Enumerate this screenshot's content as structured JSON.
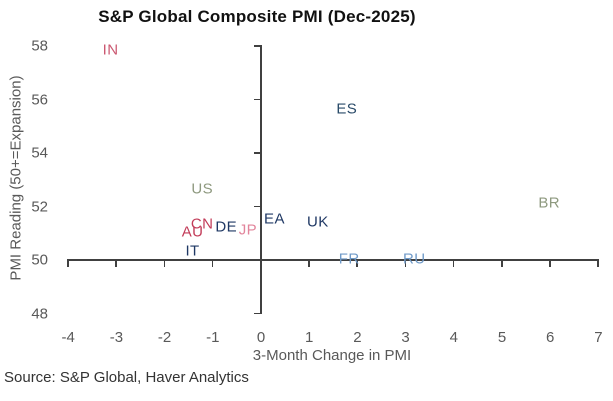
{
  "source": "Source: S&P Global, Haver Analytics",
  "chart_data": {
    "type": "scatter",
    "title": "S&P Global Composite PMI (Dec-2025)",
    "xlabel": "3-Month Change in PMI",
    "ylabel": "PMI Reading (50+=Expansion)",
    "xlim": [
      -4,
      7
    ],
    "ylim": [
      48,
      58
    ],
    "x_ticks": [
      -4,
      -3,
      -2,
      -1,
      0,
      1,
      2,
      3,
      4,
      5,
      6,
      7
    ],
    "y_ticks": [
      48,
      50,
      52,
      54,
      56,
      58
    ],
    "grid": false,
    "legend": "none",
    "annotation_style": "country-code text labels used as data markers",
    "points": [
      {
        "label": "IN",
        "x": -3.1,
        "y": 57.8,
        "color": "#cb5871"
      },
      {
        "label": "ES",
        "x": 1.8,
        "y": 55.6,
        "color": "#2a4b69"
      },
      {
        "label": "US",
        "x": -1.2,
        "y": 52.6,
        "color": "#8e997f"
      },
      {
        "label": "BR",
        "x": 6.0,
        "y": 52.1,
        "color": "#8e997f"
      },
      {
        "label": "EA",
        "x": 0.3,
        "y": 51.5,
        "color": "#1f3864"
      },
      {
        "label": "UK",
        "x": 1.2,
        "y": 51.4,
        "color": "#1f3864"
      },
      {
        "label": "CN",
        "x": -1.2,
        "y": 51.3,
        "color": "#c23b58"
      },
      {
        "label": "DE",
        "x": -0.7,
        "y": 51.2,
        "color": "#1f3864"
      },
      {
        "label": "JP",
        "x": -0.25,
        "y": 51.1,
        "color": "#e2849b"
      },
      {
        "label": "AU",
        "x": -1.4,
        "y": 51.0,
        "color": "#c23b58"
      },
      {
        "label": "IT",
        "x": -1.4,
        "y": 50.3,
        "color": "#1f3864"
      },
      {
        "label": "FR",
        "x": 1.85,
        "y": 50.0,
        "color": "#6f9ac8"
      },
      {
        "label": "RU",
        "x": 3.2,
        "y": 50.0,
        "color": "#6f9ac8"
      }
    ],
    "colors": {
      "axis": "#404040",
      "tick_text": "#595959",
      "title_text": "#111111",
      "red_group": "#c23b58",
      "pink_group": "#e2849b",
      "navy_group": "#1f3864",
      "steel_group": "#6f9ac8",
      "sage_group": "#8e997f"
    }
  }
}
